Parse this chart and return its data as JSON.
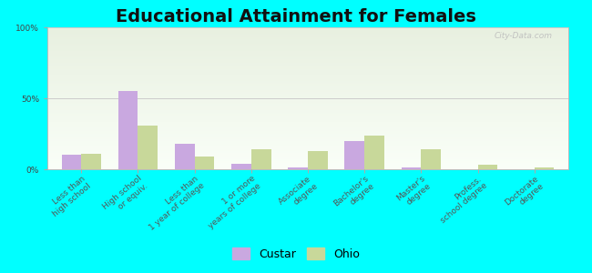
{
  "title": "Educational Attainment for Females",
  "categories": [
    "Less than\nhigh school",
    "High school\nor equiv.",
    "Less than\n1 year of college",
    "1 or more\nyears of college",
    "Associate\ndegree",
    "Bachelor's\ndegree",
    "Master's\ndegree",
    "Profess.\nschool degree",
    "Doctorate\ndegree"
  ],
  "custar_values": [
    10.0,
    55.0,
    18.0,
    4.0,
    1.5,
    20.0,
    1.5,
    0.0,
    0.0
  ],
  "ohio_values": [
    11.0,
    31.0,
    9.0,
    14.0,
    13.0,
    24.0,
    14.0,
    3.0,
    1.5
  ],
  "custar_color": "#c9a8e0",
  "ohio_color": "#c8d89a",
  "background_top": "#e8f0e0",
  "background_bottom": "#fafff8",
  "grid_color": "#cccccc",
  "ylim": [
    0,
    100
  ],
  "yticks": [
    0,
    50,
    100
  ],
  "ytick_labels": [
    "0%",
    "50%",
    "100%"
  ],
  "bar_width": 0.35,
  "watermark": "City-Data.com",
  "legend_custar": "Custar",
  "legend_ohio": "Ohio",
  "title_fontsize": 14,
  "tick_fontsize": 6.5,
  "legend_fontsize": 9,
  "outer_bg": "#00ffff"
}
